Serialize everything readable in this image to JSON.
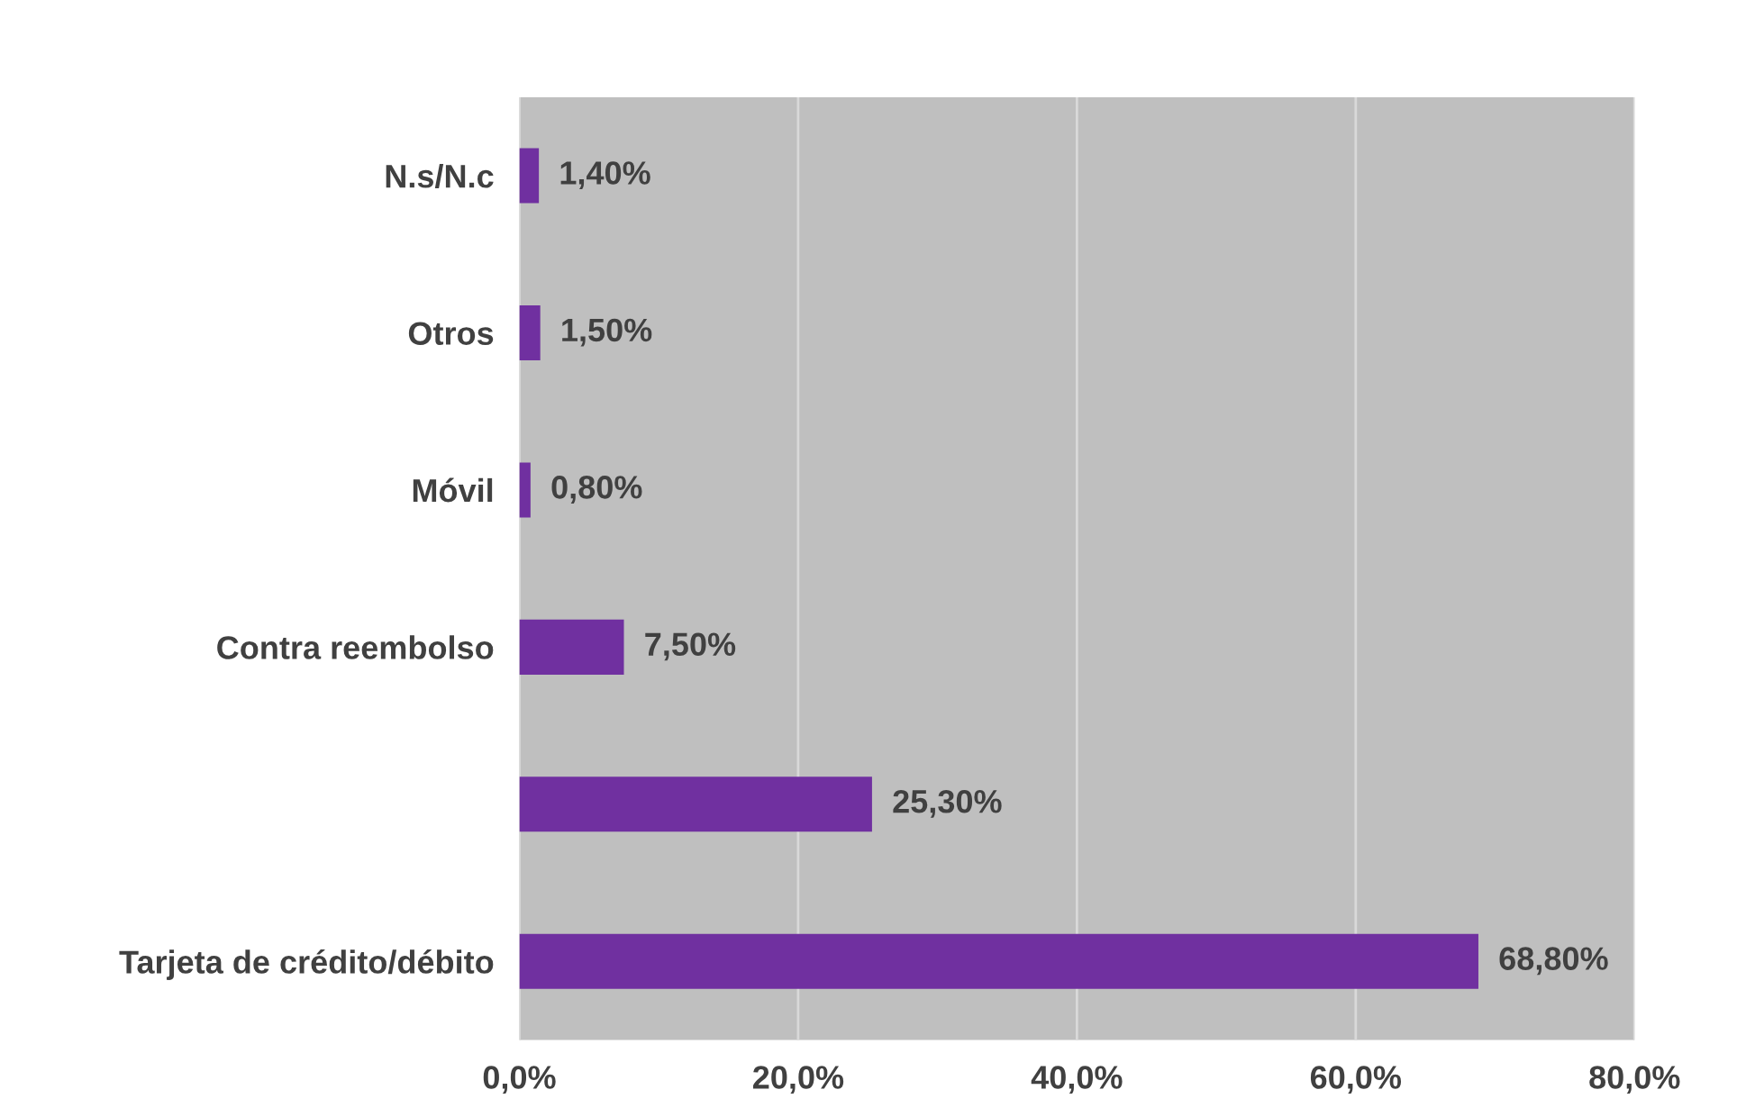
{
  "chart_data": {
    "type": "bar",
    "orientation": "horizontal",
    "categories": [
      "N.s/N.c",
      "Otros",
      "Móvil",
      "Contra reembolso",
      null,
      "Tarjeta de crédito/débito"
    ],
    "values": [
      1.4,
      1.5,
      0.8,
      7.5,
      25.3,
      68.8
    ],
    "value_labels": [
      "1,40%",
      "1,50%",
      "0,80%",
      "7,50%",
      "25,30%",
      "68,80%"
    ],
    "color": "#7030a0",
    "xlim": [
      0,
      80
    ],
    "xticks": [
      {
        "value": 0,
        "label": "0,0%"
      },
      {
        "value": 20,
        "label": "20,0%"
      },
      {
        "value": 40,
        "label": "40,0%"
      },
      {
        "value": 60,
        "label": "60,0%"
      },
      {
        "value": 80,
        "label": "80,0%"
      }
    ],
    "grid": "x",
    "legend": false
  }
}
